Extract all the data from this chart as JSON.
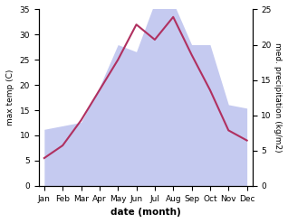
{
  "months": [
    "Jan",
    "Feb",
    "Mar",
    "Apr",
    "May",
    "Jun",
    "Jul",
    "Aug",
    "Sep",
    "Oct",
    "Nov",
    "Dec"
  ],
  "temp": [
    5.5,
    8.0,
    13.0,
    19.0,
    25.0,
    32.0,
    29.0,
    33.5,
    26.0,
    19.0,
    11.0,
    9.0
  ],
  "precip": [
    8.0,
    8.5,
    9.0,
    14.0,
    20.0,
    19.0,
    26.0,
    26.0,
    20.0,
    20.0,
    11.5,
    11.0
  ],
  "temp_color": "#b03060",
  "precip_fill_color": "#c5caf0",
  "temp_ylim": [
    0,
    35
  ],
  "precip_ylim": [
    0,
    25
  ],
  "temp_yticks": [
    0,
    5,
    10,
    15,
    20,
    25,
    30,
    35
  ],
  "precip_yticks": [
    0,
    5,
    10,
    15,
    20,
    25
  ],
  "xlabel": "date (month)",
  "ylabel_left": "max temp (C)",
  "ylabel_right": "med. precipitation (kg/m2)",
  "background_color": "#ffffff"
}
